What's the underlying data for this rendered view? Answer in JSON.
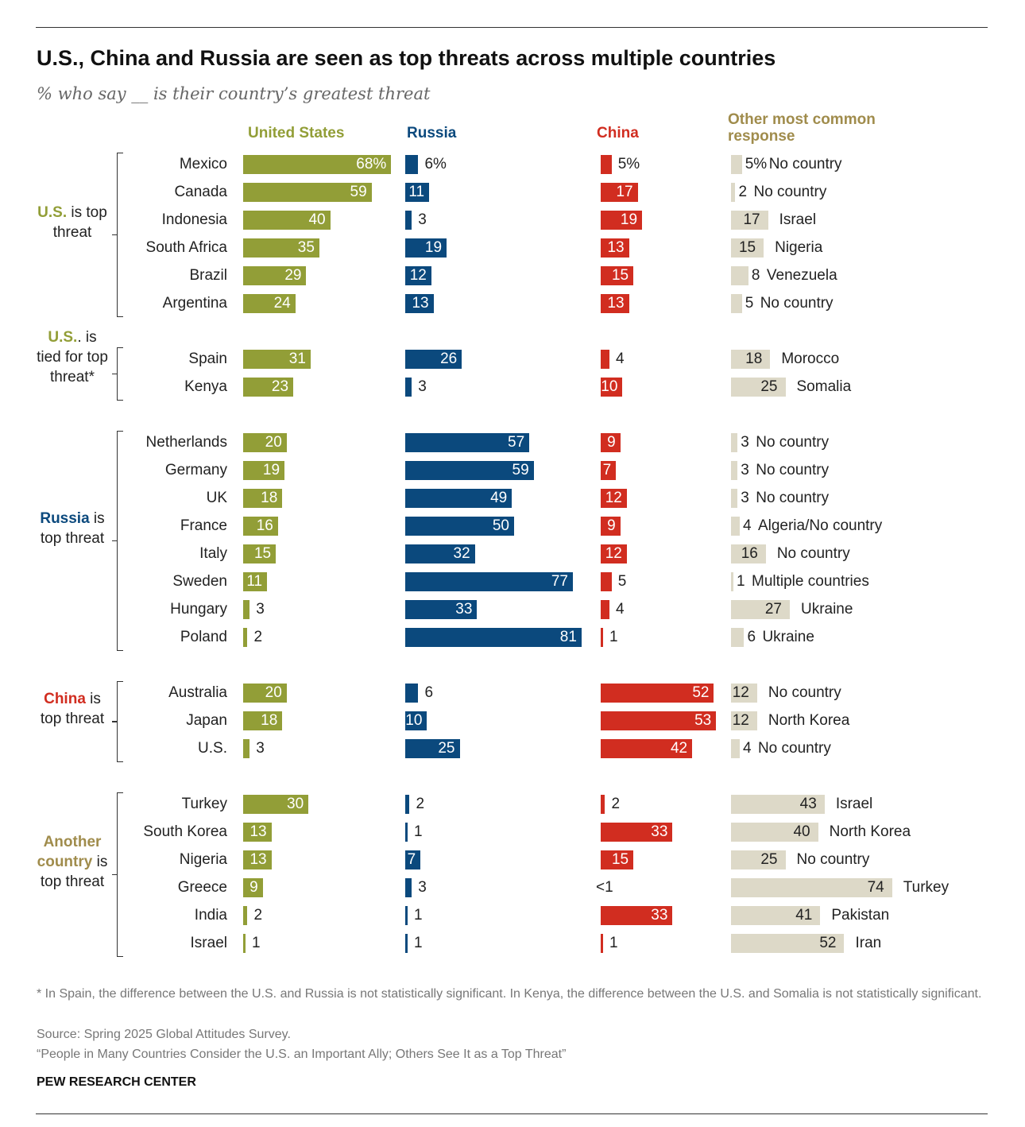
{
  "title": "U.S., China and Russia are seen as top threats across multiple countries",
  "subtitle": "% who say __ is their country’s greatest threat",
  "columns": {
    "us": "United States",
    "russia": "Russia",
    "china": "China",
    "other": "Other most common response"
  },
  "colors": {
    "us": "#929e37",
    "russia": "#0b497d",
    "china": "#d12d20",
    "other": "#ddd9c8"
  },
  "groups": [
    {
      "em": "U.S.",
      "rest": "is top threat"
    },
    {
      "em": "U.S.",
      "rest": ". is tied for top threat*"
    },
    {
      "em": "Russia",
      "rest": "is top threat"
    },
    {
      "em": "China",
      "rest": "is top threat"
    },
    {
      "em": "Another country",
      "rest": "is top threat"
    }
  ],
  "chart_data": {
    "type": "bar",
    "series_names": [
      "United States",
      "Russia",
      "China",
      "Other most common response"
    ],
    "rows": [
      {
        "group": 0,
        "country": "Mexico",
        "us": 68,
        "us_label": "68%",
        "russia": 6,
        "russia_label": "6%",
        "china": 5,
        "china_label": "5%",
        "other": 5,
        "other_label": "5%",
        "other_name": "No country"
      },
      {
        "group": 0,
        "country": "Canada",
        "us": 59,
        "us_label": "59",
        "russia": 11,
        "russia_label": "11",
        "china": 17,
        "china_label": "17",
        "other": 2,
        "other_label": "2",
        "other_name": "No country"
      },
      {
        "group": 0,
        "country": "Indonesia",
        "us": 40,
        "us_label": "40",
        "russia": 3,
        "russia_label": "3",
        "china": 19,
        "china_label": "19",
        "other": 17,
        "other_label": "17",
        "other_name": "Israel"
      },
      {
        "group": 0,
        "country": "South Africa",
        "us": 35,
        "us_label": "35",
        "russia": 19,
        "russia_label": "19",
        "china": 13,
        "china_label": "13",
        "other": 15,
        "other_label": "15",
        "other_name": "Nigeria"
      },
      {
        "group": 0,
        "country": "Brazil",
        "us": 29,
        "us_label": "29",
        "russia": 12,
        "russia_label": "12",
        "china": 15,
        "china_label": "15",
        "other": 8,
        "other_label": "8",
        "other_name": "Venezuela"
      },
      {
        "group": 0,
        "country": "Argentina",
        "us": 24,
        "us_label": "24",
        "russia": 13,
        "russia_label": "13",
        "china": 13,
        "china_label": "13",
        "other": 5,
        "other_label": "5",
        "other_name": "No country"
      },
      {
        "group": 1,
        "country": "Spain",
        "us": 31,
        "us_label": "31",
        "russia": 26,
        "russia_label": "26",
        "china": 4,
        "china_label": "4",
        "other": 18,
        "other_label": "18",
        "other_name": "Morocco"
      },
      {
        "group": 1,
        "country": "Kenya",
        "us": 23,
        "us_label": "23",
        "russia": 3,
        "russia_label": "3",
        "china": 10,
        "china_label": "10",
        "other": 25,
        "other_label": "25",
        "other_name": "Somalia"
      },
      {
        "group": 2,
        "country": "Netherlands",
        "us": 20,
        "us_label": "20",
        "russia": 57,
        "russia_label": "57",
        "china": 9,
        "china_label": "9",
        "other": 3,
        "other_label": "3",
        "other_name": "No country"
      },
      {
        "group": 2,
        "country": "Germany",
        "us": 19,
        "us_label": "19",
        "russia": 59,
        "russia_label": "59",
        "china": 7,
        "china_label": "7",
        "other": 3,
        "other_label": "3",
        "other_name": "No country"
      },
      {
        "group": 2,
        "country": "UK",
        "us": 18,
        "us_label": "18",
        "russia": 49,
        "russia_label": "49",
        "china": 12,
        "china_label": "12",
        "other": 3,
        "other_label": "3",
        "other_name": "No country"
      },
      {
        "group": 2,
        "country": "France",
        "us": 16,
        "us_label": "16",
        "russia": 50,
        "russia_label": "50",
        "china": 9,
        "china_label": "9",
        "other": 4,
        "other_label": "4",
        "other_name": "Algeria/No country"
      },
      {
        "group": 2,
        "country": "Italy",
        "us": 15,
        "us_label": "15",
        "russia": 32,
        "russia_label": "32",
        "china": 12,
        "china_label": "12",
        "other": 16,
        "other_label": "16",
        "other_name": "No country"
      },
      {
        "group": 2,
        "country": "Sweden",
        "us": 11,
        "us_label": "11",
        "russia": 77,
        "russia_label": "77",
        "china": 5,
        "china_label": "5",
        "other": 1,
        "other_label": "1",
        "other_name": "Multiple countries"
      },
      {
        "group": 2,
        "country": "Hungary",
        "us": 3,
        "us_label": "3",
        "russia": 33,
        "russia_label": "33",
        "china": 4,
        "china_label": "4",
        "other": 27,
        "other_label": "27",
        "other_name": "Ukraine"
      },
      {
        "group": 2,
        "country": "Poland",
        "us": 2,
        "us_label": "2",
        "russia": 81,
        "russia_label": "81",
        "china": 1,
        "china_label": "1",
        "other": 6,
        "other_label": "6",
        "other_name": "Ukraine"
      },
      {
        "group": 3,
        "country": "Australia",
        "us": 20,
        "us_label": "20",
        "russia": 6,
        "russia_label": "6",
        "china": 52,
        "china_label": "52",
        "other": 12,
        "other_label": "12",
        "other_name": "No country"
      },
      {
        "group": 3,
        "country": "Japan",
        "us": 18,
        "us_label": "18",
        "russia": 10,
        "russia_label": "10",
        "china": 53,
        "china_label": "53",
        "other": 12,
        "other_label": "12",
        "other_name": "North Korea"
      },
      {
        "group": 3,
        "country": "U.S.",
        "us": 3,
        "us_label": "3",
        "russia": 25,
        "russia_label": "25",
        "china": 42,
        "china_label": "42",
        "other": 4,
        "other_label": "4",
        "other_name": "No country"
      },
      {
        "group": 4,
        "country": "Turkey",
        "us": 30,
        "us_label": "30",
        "russia": 2,
        "russia_label": "2",
        "china": 2,
        "china_label": "2",
        "other": 43,
        "other_label": "43",
        "other_name": "Israel"
      },
      {
        "group": 4,
        "country": "South Korea",
        "us": 13,
        "us_label": "13",
        "russia": 1,
        "russia_label": "1",
        "china": 33,
        "china_label": "33",
        "other": 40,
        "other_label": "40",
        "other_name": "North Korea"
      },
      {
        "group": 4,
        "country": "Nigeria",
        "us": 13,
        "us_label": "13",
        "russia": 7,
        "russia_label": "7",
        "china": 15,
        "china_label": "15",
        "other": 25,
        "other_label": "25",
        "other_name": "No country"
      },
      {
        "group": 4,
        "country": "Greece",
        "us": 9,
        "us_label": "9",
        "russia": 3,
        "russia_label": "3",
        "china": 0,
        "china_label": "<1",
        "other": 74,
        "other_label": "74",
        "other_name": "Turkey"
      },
      {
        "group": 4,
        "country": "India",
        "us": 2,
        "us_label": "2",
        "russia": 1,
        "russia_label": "1",
        "china": 33,
        "china_label": "33",
        "other": 41,
        "other_label": "41",
        "other_name": "Pakistan"
      },
      {
        "group": 4,
        "country": "Israel",
        "us": 1,
        "us_label": "1",
        "russia": 1,
        "russia_label": "1",
        "china": 1,
        "china_label": "1",
        "other": 52,
        "other_label": "52",
        "other_name": "Iran"
      }
    ]
  },
  "footnote": "* In Spain, the difference between the U.S. and Russia is not statistically significant. In Kenya, the difference between the U.S. and Somalia is not statistically significant.",
  "source": "Source: Spring 2025 Global Attitudes Survey.",
  "report": "“People in Many Countries Consider the U.S. an Important Ally; Others See It as a Top Threat”",
  "brand": "PEW RESEARCH CENTER"
}
